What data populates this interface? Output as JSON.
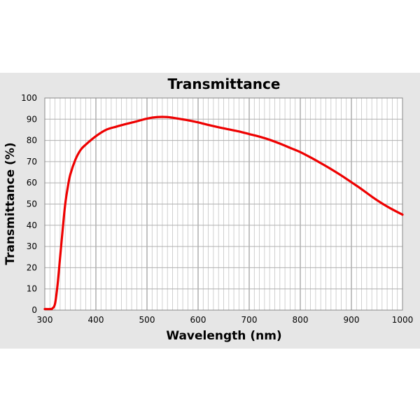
{
  "chart_data": {
    "type": "line",
    "title": "Transmittance",
    "xlabel": "Wavelength (nm)",
    "ylabel": "Transmittance (%)",
    "xlim": [
      300,
      1000
    ],
    "ylim": [
      0,
      100
    ],
    "x_ticks": [
      300,
      400,
      500,
      600,
      700,
      800,
      900,
      1000
    ],
    "y_ticks": [
      0,
      10,
      20,
      30,
      40,
      50,
      60,
      70,
      80,
      90,
      100
    ],
    "grid": true,
    "colors": {
      "series": "#ee0000",
      "background": "#e6e6e6",
      "plot": "#ffffff",
      "grid": "#aaaaaa"
    },
    "series": [
      {
        "x": [
          300,
          310,
          315,
          320,
          325,
          330,
          335,
          340,
          345,
          350,
          360,
          370,
          380,
          400,
          420,
          440,
          460,
          480,
          500,
          520,
          540,
          560,
          580,
          600,
          620,
          640,
          660,
          680,
          700,
          720,
          740,
          760,
          780,
          800,
          820,
          840,
          860,
          880,
          900,
          920,
          940,
          960,
          980,
          1000
        ],
        "y": [
          0.5,
          0.5,
          0.8,
          3,
          12,
          25,
          38,
          50,
          58,
          64,
          71,
          75.5,
          78,
          82,
          85,
          86.5,
          87.8,
          89,
          90.3,
          91,
          91,
          90.3,
          89.5,
          88.5,
          87.3,
          86.2,
          85.2,
          84.2,
          83,
          81.8,
          80.3,
          78.5,
          76.5,
          74.5,
          72,
          69.3,
          66.5,
          63.5,
          60.3,
          57,
          53.5,
          50.3,
          47.5,
          45
        ]
      }
    ]
  }
}
